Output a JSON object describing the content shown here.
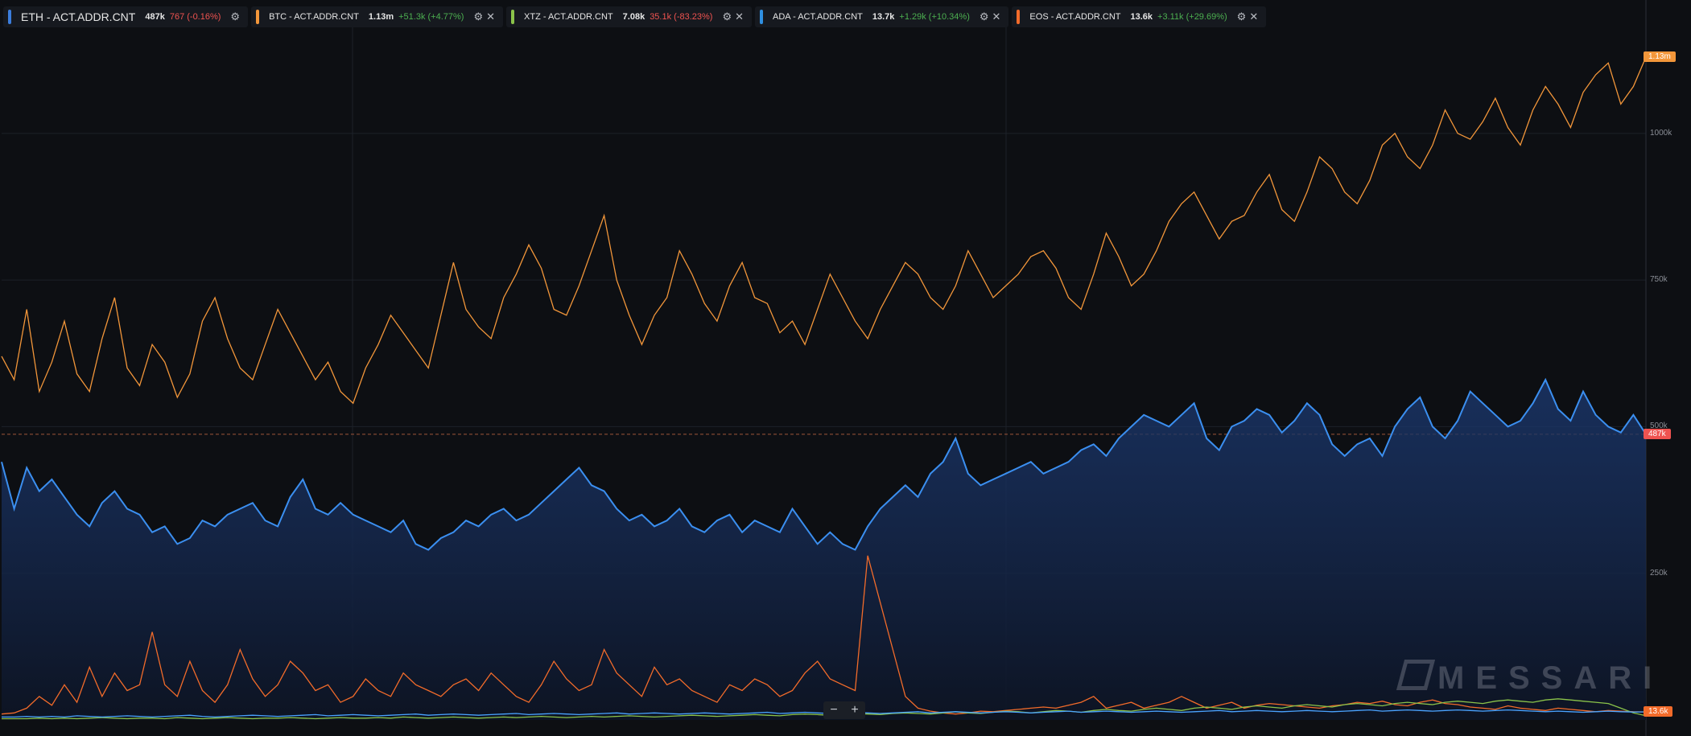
{
  "legend": [
    {
      "name": "ETH - ACT.ADDR.CNT",
      "value": "487k",
      "change": "767",
      "pct": "(-0.16%)",
      "dir": "down",
      "color": "#3b7ddd",
      "primary": true
    },
    {
      "name": "BTC - ACT.ADDR.CNT",
      "value": "1.13m",
      "change": "+51.3k",
      "pct": "(+4.77%)",
      "dir": "up",
      "color": "#f2963a",
      "primary": false
    },
    {
      "name": "XTZ - ACT.ADDR.CNT",
      "value": "7.08k",
      "change": "35.1k",
      "pct": "(-83.23%)",
      "dir": "down",
      "color": "#8bc34a",
      "primary": false
    },
    {
      "name": "ADA - ACT.ADDR.CNT",
      "value": "13.7k",
      "change": "+1.29k",
      "pct": "(+10.34%)",
      "dir": "up",
      "color": "#2f8fe0",
      "primary": false
    },
    {
      "name": "EOS - ACT.ADDR.CNT",
      "value": "13.6k",
      "change": "+3.11k",
      "pct": "(+29.69%)",
      "dir": "up",
      "color": "#f26b2a",
      "primary": false
    }
  ],
  "icons": {
    "settings": "gear-icon",
    "close": "close-icon",
    "zoom_out": "minus-icon",
    "zoom_in": "plus-icon"
  },
  "zoom": {
    "minus": "−",
    "plus": "+"
  },
  "watermark": "MESSARI",
  "colors": {
    "up": "#4caf50",
    "down": "#ef5350",
    "background": "#0d0f13",
    "grid": "#1d2129"
  },
  "chart_data": {
    "type": "line",
    "y_ticks": [
      "250k",
      "500k",
      "750k",
      "1000k"
    ],
    "y_tick_values": [
      250000,
      500000,
      750000,
      1000000
    ],
    "ylim": [
      0,
      1200000
    ],
    "last_value_tags": [
      {
        "label": "1.13m",
        "value": 1130000,
        "color": "#f2963a"
      },
      {
        "label": "487k",
        "value": 487000,
        "color": "#ef5350"
      },
      {
        "label": "13.6k",
        "value": 13600,
        "color": "#f26b2a"
      }
    ],
    "grid": true,
    "series": [
      {
        "name": "BTC - ACT.ADDR.CNT",
        "color": "#f2963a",
        "values": [
          620000,
          580000,
          700000,
          560000,
          610000,
          680000,
          590000,
          560000,
          650000,
          720000,
          600000,
          570000,
          640000,
          610000,
          550000,
          590000,
          680000,
          720000,
          650000,
          600000,
          580000,
          640000,
          700000,
          660000,
          620000,
          580000,
          610000,
          560000,
          540000,
          600000,
          640000,
          690000,
          660000,
          630000,
          600000,
          690000,
          780000,
          700000,
          670000,
          650000,
          720000,
          760000,
          810000,
          770000,
          700000,
          690000,
          740000,
          800000,
          860000,
          750000,
          690000,
          640000,
          690000,
          720000,
          800000,
          760000,
          710000,
          680000,
          740000,
          780000,
          720000,
          710000,
          660000,
          680000,
          640000,
          700000,
          760000,
          720000,
          680000,
          650000,
          700000,
          740000,
          780000,
          760000,
          720000,
          700000,
          740000,
          800000,
          760000,
          720000,
          740000,
          760000,
          790000,
          800000,
          770000,
          720000,
          700000,
          760000,
          830000,
          790000,
          740000,
          760000,
          800000,
          850000,
          880000,
          900000,
          860000,
          820000,
          850000,
          860000,
          900000,
          930000,
          870000,
          850000,
          900000,
          960000,
          940000,
          900000,
          880000,
          920000,
          980000,
          1000000,
          960000,
          940000,
          980000,
          1040000,
          1000000,
          990000,
          1020000,
          1060000,
          1010000,
          980000,
          1040000,
          1080000,
          1050000,
          1010000,
          1070000,
          1100000,
          1120000,
          1050000,
          1080000,
          1130000
        ]
      },
      {
        "name": "ETH - ACT.ADDR.CNT",
        "color": "#3b8ff0",
        "values": [
          440000,
          360000,
          430000,
          390000,
          410000,
          380000,
          350000,
          330000,
          370000,
          390000,
          360000,
          350000,
          320000,
          330000,
          300000,
          310000,
          340000,
          330000,
          350000,
          360000,
          370000,
          340000,
          330000,
          380000,
          410000,
          360000,
          350000,
          370000,
          350000,
          340000,
          330000,
          320000,
          340000,
          300000,
          290000,
          310000,
          320000,
          340000,
          330000,
          350000,
          360000,
          340000,
          350000,
          370000,
          390000,
          410000,
          430000,
          400000,
          390000,
          360000,
          340000,
          350000,
          330000,
          340000,
          360000,
          330000,
          320000,
          340000,
          350000,
          320000,
          340000,
          330000,
          320000,
          360000,
          330000,
          300000,
          320000,
          300000,
          290000,
          330000,
          360000,
          380000,
          400000,
          380000,
          420000,
          440000,
          480000,
          420000,
          400000,
          410000,
          420000,
          430000,
          440000,
          420000,
          430000,
          440000,
          460000,
          470000,
          450000,
          480000,
          500000,
          520000,
          510000,
          500000,
          520000,
          540000,
          480000,
          460000,
          500000,
          510000,
          530000,
          520000,
          490000,
          510000,
          540000,
          520000,
          470000,
          450000,
          470000,
          480000,
          450000,
          500000,
          530000,
          550000,
          500000,
          480000,
          510000,
          560000,
          540000,
          520000,
          500000,
          510000,
          540000,
          580000,
          530000,
          510000,
          560000,
          520000,
          500000,
          490000,
          520000,
          487000
        ]
      },
      {
        "name": "EOS - ACT.ADDR.CNT",
        "color": "#f26b2a",
        "values": [
          10000,
          12000,
          20000,
          40000,
          25000,
          60000,
          30000,
          90000,
          40000,
          80000,
          50000,
          60000,
          150000,
          60000,
          40000,
          100000,
          50000,
          30000,
          60000,
          120000,
          70000,
          40000,
          60000,
          100000,
          80000,
          50000,
          60000,
          30000,
          40000,
          70000,
          50000,
          40000,
          80000,
          60000,
          50000,
          40000,
          60000,
          70000,
          50000,
          80000,
          60000,
          40000,
          30000,
          60000,
          100000,
          70000,
          50000,
          60000,
          120000,
          80000,
          60000,
          40000,
          90000,
          60000,
          70000,
          50000,
          40000,
          30000,
          60000,
          50000,
          70000,
          60000,
          40000,
          50000,
          80000,
          100000,
          70000,
          60000,
          50000,
          280000,
          200000,
          120000,
          40000,
          20000,
          15000,
          12000,
          10000,
          12000,
          15000,
          14000,
          16000,
          18000,
          20000,
          22000,
          20000,
          25000,
          30000,
          40000,
          20000,
          25000,
          30000,
          20000,
          25000,
          30000,
          40000,
          30000,
          20000,
          25000,
          30000,
          20000,
          25000,
          28000,
          26000,
          24000,
          22000,
          20000,
          24000,
          26000,
          30000,
          28000,
          32000,
          26000,
          24000,
          30000,
          34000,
          28000,
          26000,
          22000,
          20000,
          18000,
          24000,
          20000,
          18000,
          16000,
          20000,
          18000,
          16000,
          14000,
          16000,
          15000,
          14000,
          13600
        ]
      },
      {
        "name": "XTZ - ACT.ADDR.CNT",
        "color": "#8bc34a",
        "values": [
          2000,
          2000,
          2000,
          3000,
          2000,
          3000,
          2000,
          3000,
          4000,
          3000,
          2000,
          3000,
          3000,
          2000,
          4000,
          3000,
          2000,
          3000,
          4000,
          3000,
          2000,
          3000,
          3000,
          4000,
          3000,
          2000,
          3000,
          4000,
          3000,
          3000,
          4000,
          3000,
          5000,
          4000,
          3000,
          4000,
          5000,
          4000,
          3000,
          4000,
          5000,
          4000,
          5000,
          6000,
          5000,
          4000,
          5000,
          6000,
          5000,
          6000,
          7000,
          6000,
          5000,
          6000,
          7000,
          8000,
          7000,
          6000,
          7000,
          8000,
          9000,
          8000,
          7000,
          9000,
          10000,
          9000,
          8000,
          10000,
          11000,
          10000,
          9000,
          11000,
          12000,
          11000,
          10000,
          12000,
          14000,
          12000,
          11000,
          13000,
          15000,
          14000,
          12000,
          14000,
          16000,
          15000,
          13000,
          16000,
          18000,
          16000,
          15000,
          18000,
          20000,
          18000,
          16000,
          20000,
          22000,
          20000,
          18000,
          22000,
          24000,
          22000,
          20000,
          24000,
          26000,
          24000,
          22000,
          26000,
          28000,
          26000,
          24000,
          28000,
          30000,
          28000,
          26000,
          30000,
          32000,
          30000,
          28000,
          32000,
          34000,
          32000,
          30000,
          34000,
          36000,
          34000,
          32000,
          30000,
          28000,
          20000,
          12000,
          7080
        ]
      },
      {
        "name": "ADA - ACT.ADDR.CNT",
        "color": "#4aa3ff",
        "values": [
          5000,
          5000,
          6000,
          5000,
          6000,
          5000,
          7000,
          6000,
          5000,
          6000,
          7000,
          6000,
          5000,
          6000,
          7000,
          8000,
          6000,
          5000,
          6000,
          7000,
          8000,
          7000,
          6000,
          7000,
          8000,
          9000,
          7000,
          8000,
          9000,
          8000,
          7000,
          8000,
          9000,
          10000,
          8000,
          9000,
          10000,
          9000,
          8000,
          9000,
          10000,
          11000,
          9000,
          10000,
          11000,
          10000,
          9000,
          10000,
          11000,
          12000,
          10000,
          11000,
          12000,
          11000,
          10000,
          11000,
          12000,
          11000,
          10000,
          11000,
          12000,
          13000,
          11000,
          12000,
          13000,
          12000,
          11000,
          12000,
          13000,
          12000,
          11000,
          12000,
          13000,
          14000,
          12000,
          13000,
          14000,
          13000,
          12000,
          13000,
          14000,
          13000,
          12000,
          13000,
          14000,
          15000,
          13000,
          14000,
          15000,
          14000,
          13000,
          14000,
          15000,
          14000,
          13000,
          14000,
          15000,
          16000,
          14000,
          15000,
          16000,
          15000,
          14000,
          15000,
          16000,
          15000,
          14000,
          15000,
          16000,
          17000,
          15000,
          16000,
          17000,
          16000,
          15000,
          16000,
          17000,
          16000,
          15000,
          16000,
          17000,
          16000,
          15000,
          14000,
          15000,
          14000,
          13000,
          14000,
          15000,
          14000,
          13500,
          13700
        ]
      }
    ]
  }
}
